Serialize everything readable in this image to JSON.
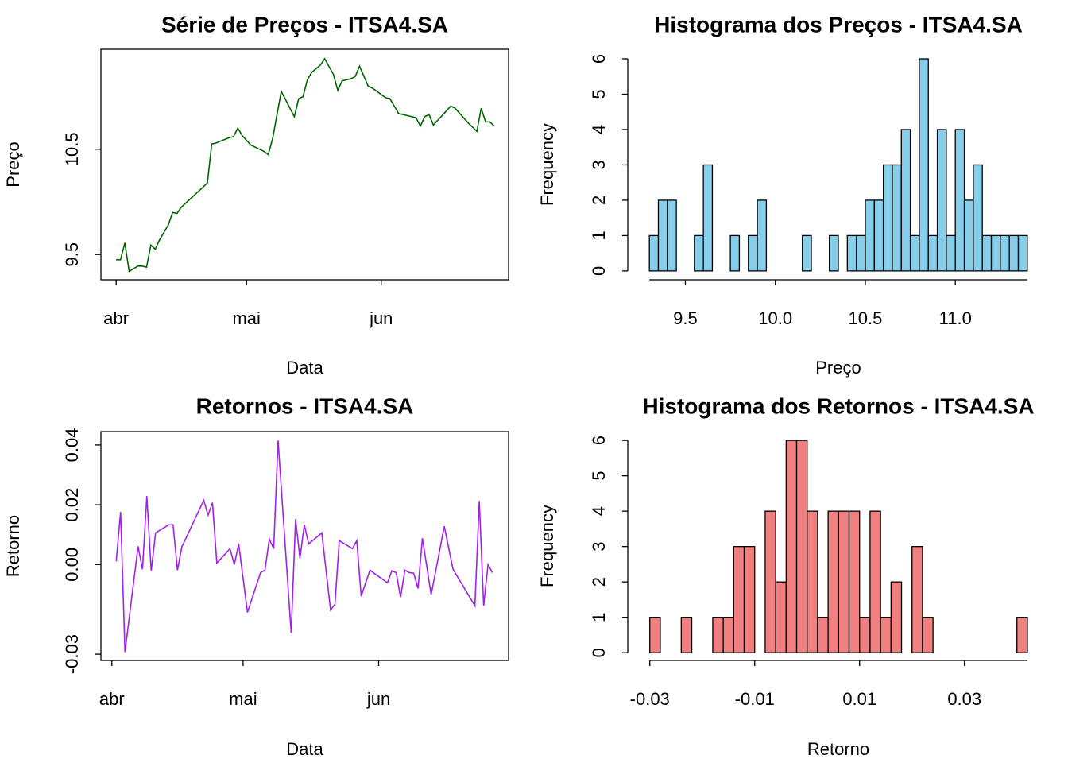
{
  "chart_data": [
    {
      "type": "line",
      "title": "Série de Preços - ITSA4.SA",
      "xlabel": "Data",
      "ylabel": "Preço",
      "color": "#006400",
      "x": [
        0,
        1,
        2,
        3,
        5,
        6,
        7,
        8,
        9,
        10,
        12,
        13,
        14,
        15,
        20,
        21,
        22,
        23,
        26,
        27,
        28,
        29,
        31,
        34,
        35,
        36,
        38,
        41,
        42,
        43,
        44,
        45,
        47,
        48,
        50,
        51,
        52,
        54,
        55,
        56,
        58,
        59,
        62,
        63,
        64,
        65,
        68,
        69,
        70,
        71,
        72,
        73,
        75,
        77,
        78,
        81,
        83,
        84,
        85,
        86,
        87
      ],
      "values": [
        9.45,
        9.45,
        9.61,
        9.34,
        9.39,
        9.39,
        9.38,
        9.59,
        9.55,
        9.64,
        9.78,
        9.9,
        9.89,
        9.95,
        10.14,
        10.18,
        10.55,
        10.56,
        10.61,
        10.62,
        10.7,
        10.63,
        10.54,
        10.48,
        10.45,
        10.6,
        11.05,
        10.81,
        10.98,
        11.0,
        11.16,
        11.23,
        11.3,
        11.36,
        11.21,
        11.06,
        11.15,
        11.17,
        11.19,
        11.29,
        11.1,
        11.08,
        10.99,
        10.98,
        10.91,
        10.84,
        10.81,
        10.8,
        10.72,
        10.81,
        10.83,
        10.73,
        10.82,
        10.91,
        10.89,
        10.75,
        10.67,
        10.89,
        10.76,
        10.76,
        10.72
      ],
      "xlim": [
        -3.5,
        90.3
      ],
      "ylim": [
        9.26,
        11.45
      ],
      "xticks": [
        {
          "value": 0,
          "label": "abr"
        },
        {
          "value": 30,
          "label": "mai"
        },
        {
          "value": 61,
          "label": "jun"
        }
      ],
      "yticks": [
        9.5,
        10.5
      ]
    },
    {
      "type": "histogram",
      "title": "Histograma dos Preços - ITSA4.SA",
      "xlabel": "Preço",
      "ylabel": "Frequency",
      "color": "#87ceeb",
      "bins": [
        9.3,
        9.35,
        9.4,
        9.45,
        9.5,
        9.55,
        9.6,
        9.65,
        9.7,
        9.75,
        9.8,
        9.85,
        9.9,
        9.95,
        10,
        10.05,
        10.1,
        10.15,
        10.2,
        10.25,
        10.3,
        10.35,
        10.4,
        10.45,
        10.5,
        10.55,
        10.6,
        10.65,
        10.7,
        10.75,
        10.8,
        10.85,
        10.9,
        10.95,
        11,
        11.05,
        11.1,
        11.15,
        11.2,
        11.25,
        11.3,
        11.35,
        11.4
      ],
      "counts": [
        1,
        2,
        2,
        0,
        0,
        1,
        3,
        0,
        0,
        1,
        0,
        1,
        2,
        0,
        0,
        0,
        0,
        1,
        0,
        0,
        1,
        0,
        1,
        1,
        2,
        2,
        3,
        3,
        4,
        1,
        6,
        1,
        4,
        1,
        4,
        2,
        3,
        1,
        1,
        1,
        1,
        1
      ],
      "xlim": [
        9.18,
        11.52
      ],
      "ylim": [
        -0.25,
        6.27
      ],
      "xticks": [
        9.5,
        {
          "value": 10,
          "label": "10.0"
        },
        10.5,
        {
          "value": 11,
          "label": "11.0"
        }
      ],
      "yticks": [
        0,
        1,
        2,
        3,
        4,
        5,
        6
      ]
    },
    {
      "type": "line",
      "title": "Retornos - ITSA4.SA",
      "xlabel": "Data",
      "ylabel": "Retorno",
      "color": "#a020f0",
      "x": [
        1,
        2,
        3,
        6,
        7,
        8,
        9,
        10,
        13,
        14,
        15,
        16,
        21,
        22,
        23,
        24,
        27,
        28,
        29,
        31,
        34,
        35,
        36,
        37,
        38,
        41,
        42,
        43,
        44,
        45,
        48,
        50,
        51,
        52,
        55,
        56,
        57,
        59,
        63,
        64,
        65,
        66,
        67,
        68,
        69,
        70,
        71,
        73,
        76,
        78,
        83,
        84,
        85,
        86,
        87
      ],
      "values": [
        0.0011,
        0.0176,
        -0.0293,
        0.0061,
        -0.0016,
        0.0229,
        -0.0021,
        0.0106,
        0.0133,
        0.0133,
        -0.0019,
        0.0059,
        0.0215,
        0.0165,
        0.0207,
        0.0005,
        0.0053,
        0,
        0.0069,
        -0.016,
        -0.0027,
        -0.0019,
        0.0085,
        0.0053,
        0.0415,
        -0.0229,
        0.0152,
        0.0021,
        0.0133,
        0.0069,
        0.0106,
        -0.0152,
        -0.0133,
        0.008,
        0.0053,
        0.008,
        -0.0106,
        -0.0019,
        -0.0061,
        -0.0021,
        -0.0027,
        -0.0109,
        -0.0019,
        -0.0027,
        -0.0029,
        -0.008,
        0.0088,
        -0.0101,
        0.0128,
        -0.0016,
        -0.0138,
        0.0213,
        -0.0138,
        0,
        -0.0027
      ],
      "xlim": [
        -2.5,
        90.7
      ],
      "ylim": [
        -0.0321,
        0.0445
      ],
      "xticks": [
        {
          "value": 0,
          "label": "abr"
        },
        {
          "value": 30,
          "label": "mai"
        },
        {
          "value": 61,
          "label": "jun"
        }
      ],
      "yticks": [
        -0.03,
        {
          "value": 0,
          "label": "0.00"
        },
        0.02,
        0.04
      ]
    },
    {
      "type": "histogram",
      "title": "Histograma dos Retornos - ITSA4.SA",
      "xlabel": "Retorno",
      "ylabel": "Frequency",
      "color": "#f08080",
      "bins": [
        -0.03,
        -0.028,
        -0.026,
        -0.024,
        -0.022,
        -0.02,
        -0.018,
        -0.016,
        -0.014,
        -0.012,
        -0.01,
        -0.008,
        -0.006,
        -0.004,
        -0.002,
        0,
        0.002,
        0.004,
        0.006,
        0.008,
        0.01,
        0.012,
        0.014,
        0.016,
        0.018,
        0.02,
        0.022,
        0.024,
        0.026,
        0.028,
        0.03,
        0.032,
        0.034,
        0.036,
        0.038,
        0.04,
        0.042
      ],
      "counts": [
        1,
        0,
        0,
        1,
        0,
        0,
        1,
        1,
        3,
        3,
        0,
        4,
        2,
        6,
        6,
        4,
        1,
        4,
        4,
        4,
        1,
        4,
        1,
        2,
        0,
        3,
        1,
        0,
        0,
        0,
        0,
        0,
        0,
        0,
        0,
        1
      ],
      "xlim": [
        -0.0342,
        0.0461
      ],
      "ylim": [
        -0.22,
        6.25
      ],
      "xticks": [
        -0.03,
        -0.01,
        0.01,
        0.03
      ],
      "yticks": [
        0,
        1,
        2,
        3,
        4,
        5,
        6
      ]
    }
  ]
}
